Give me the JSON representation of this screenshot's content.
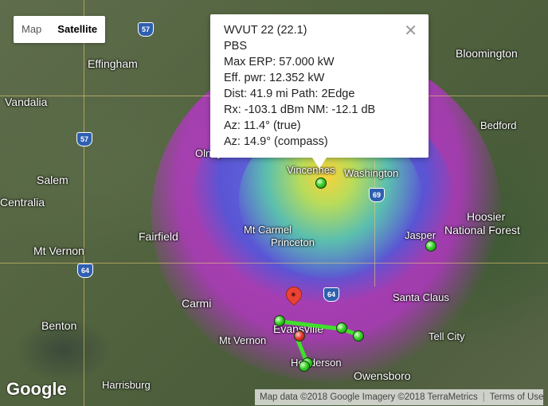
{
  "map_type": {
    "map_label": "Map",
    "satellite_label": "Satellite",
    "selected": "Satellite"
  },
  "popup": {
    "lines": [
      "WVUT 22 (22.1)",
      "PBS",
      "Max ERP: 57.000 kW",
      "Eff. pwr: 12.352 kW",
      "Dist: 41.9 mi   Path: 2Edge",
      "Rx: -103.1 dBm   NM: -12.1 dB",
      "Az: 11.4° (true)",
      "Az: 14.9° (compass)"
    ],
    "close_icon": "close-icon"
  },
  "places": [
    "Effingham",
    "Vandalia",
    "Salem",
    "Centralia",
    "Mt Vernon",
    "Fairfield",
    "Carmi",
    "Benton",
    "Mt Vernon",
    "Harrisburg",
    "Bloomington",
    "Bedford",
    "Hoosier",
    "National Forest",
    "Jasper",
    "Santa Claus",
    "Tell City",
    "Owensboro",
    "Henderson",
    "Evansville",
    "Vincennes",
    "Washington",
    "Mt Carmel",
    "Princeton",
    "Olney"
  ],
  "highways": [
    "57",
    "57",
    "64",
    "69",
    "64"
  ],
  "attribution": {
    "map_data": "Map data ©2018 Google Imagery ©2018 TerraMetrics",
    "terms": "Terms of Use"
  },
  "logo": "Google",
  "colors": {
    "link": "#3fe02a",
    "marker": "#39d12a",
    "pin": "#ea4335"
  }
}
